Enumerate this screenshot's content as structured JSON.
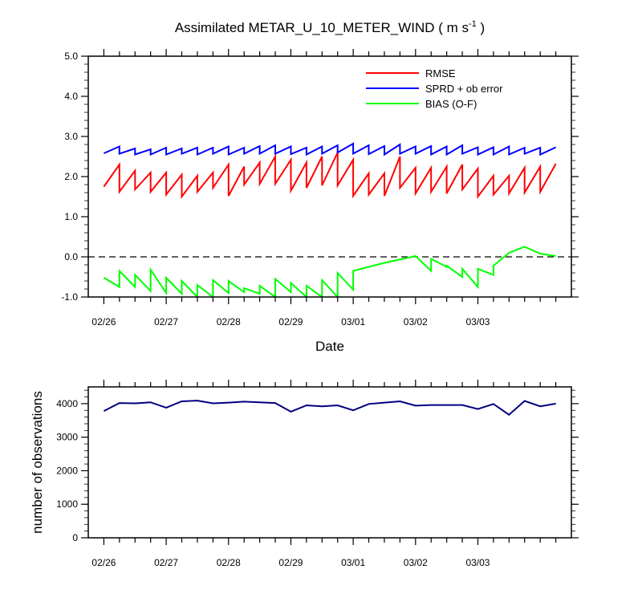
{
  "chart_data": [
    {
      "type": "line",
      "title_main": "Assimilated METAR_U_10_METER_WIND ( m s",
      "title_sup": "-1",
      "title_end": " )",
      "xlabel": "Date",
      "ylabel": "",
      "ylim": [
        -1.0,
        5.0
      ],
      "yticks": [
        "-1.0",
        "0.0",
        "1.0",
        "2.0",
        "3.0",
        "4.0",
        "5.0"
      ],
      "xticks": [
        "02/26",
        "02/27",
        "02/28",
        "02/29",
        "03/01",
        "03/02",
        "03/03"
      ],
      "reference_line": 0.0,
      "legend_position": "top-right",
      "series": [
        {
          "name": "RMSE",
          "color": "#ff0000",
          "x": [
            0,
            0.25,
            0.25,
            0.5,
            0.5,
            0.75,
            0.75,
            1,
            1,
            1.25,
            1.25,
            1.5,
            1.5,
            1.75,
            1.75,
            2,
            2,
            2.25,
            2.25,
            2.5,
            2.5,
            2.75,
            2.75,
            3,
            3,
            3.25,
            3.25,
            3.5,
            3.5,
            3.75,
            3.75,
            4,
            4,
            4.25,
            4.25,
            4.5,
            4.5,
            4.75,
            4.75,
            5,
            5,
            5.25,
            5.25,
            5.5,
            5.5,
            5.75,
            5.75,
            6,
            6,
            6.25,
            6.25,
            6.5,
            6.5,
            6.75,
            6.75,
            7,
            7,
            7.25
          ],
          "values": [
            1.75,
            2.3,
            1.62,
            2.15,
            1.68,
            2.1,
            1.62,
            2.1,
            1.55,
            2.05,
            1.5,
            2.02,
            1.62,
            2.1,
            1.72,
            2.3,
            1.52,
            2.25,
            1.8,
            2.35,
            1.82,
            2.5,
            1.82,
            2.42,
            1.65,
            2.35,
            1.72,
            2.5,
            1.78,
            2.6,
            1.78,
            2.42,
            1.52,
            2.08,
            1.55,
            2.08,
            1.52,
            2.5,
            1.72,
            2.22,
            1.58,
            2.22,
            1.62,
            2.25,
            1.58,
            2.3,
            1.68,
            2.2,
            1.5,
            2.02,
            1.55,
            2.02,
            1.58,
            2.22,
            1.6,
            2.25,
            1.62,
            2.32
          ]
        },
        {
          "name": "SPRD + ob error",
          "color": "#0000ff",
          "x": [
            0,
            0.25,
            0.25,
            0.5,
            0.5,
            0.75,
            0.75,
            1,
            1,
            1.25,
            1.25,
            1.5,
            1.5,
            1.75,
            1.75,
            2,
            2,
            2.25,
            2.25,
            2.5,
            2.5,
            2.75,
            2.75,
            3,
            3,
            3.25,
            3.25,
            3.5,
            3.5,
            3.75,
            3.75,
            4,
            4,
            4.25,
            4.25,
            4.5,
            4.5,
            4.75,
            4.75,
            5,
            5,
            5.25,
            5.25,
            5.5,
            5.5,
            5.75,
            5.75,
            6,
            6,
            6.25,
            6.25,
            6.5,
            6.5,
            6.75,
            6.75,
            7,
            7,
            7.25
          ],
          "values": [
            2.58,
            2.75,
            2.57,
            2.7,
            2.55,
            2.68,
            2.55,
            2.72,
            2.55,
            2.7,
            2.57,
            2.72,
            2.55,
            2.72,
            2.57,
            2.75,
            2.55,
            2.72,
            2.57,
            2.76,
            2.57,
            2.78,
            2.57,
            2.75,
            2.56,
            2.72,
            2.55,
            2.75,
            2.57,
            2.78,
            2.6,
            2.82,
            2.57,
            2.78,
            2.56,
            2.76,
            2.55,
            2.8,
            2.57,
            2.75,
            2.57,
            2.76,
            2.55,
            2.75,
            2.55,
            2.78,
            2.57,
            2.73,
            2.55,
            2.73,
            2.55,
            2.75,
            2.55,
            2.72,
            2.57,
            2.72,
            2.55,
            2.73
          ]
        },
        {
          "name": "BIAS (O-F)",
          "color": "#00ff00",
          "x": [
            0,
            0.25,
            0.25,
            0.5,
            0.5,
            0.75,
            0.75,
            1,
            1,
            1.25,
            1.25,
            1.5,
            1.5,
            1.75,
            1.75,
            2,
            2,
            2.25,
            2.25,
            2.5,
            2.5,
            2.75,
            2.75,
            3,
            3,
            3.25,
            3.25,
            3.5,
            3.5,
            3.75,
            3.75,
            4,
            4,
            4.5,
            5,
            5.25,
            5.25,
            5.5,
            5.5,
            5.75,
            5.75,
            6,
            6,
            6.25,
            6.25,
            6.5,
            6.75,
            7,
            7.25
          ],
          "values": [
            -0.52,
            -0.75,
            -0.35,
            -0.75,
            -0.45,
            -0.85,
            -0.32,
            -0.9,
            -0.52,
            -0.92,
            -0.6,
            -1.0,
            -0.7,
            -1.0,
            -0.58,
            -0.9,
            -0.6,
            -0.88,
            -0.78,
            -0.92,
            -0.72,
            -1.0,
            -0.55,
            -0.88,
            -0.65,
            -1.0,
            -0.72,
            -1.0,
            -0.58,
            -1.0,
            -0.4,
            -0.82,
            -0.35,
            -0.15,
            0.02,
            -0.35,
            -0.05,
            -0.25,
            -0.22,
            -0.5,
            -0.3,
            -0.75,
            -0.3,
            -0.45,
            -0.22,
            0.1,
            0.25,
            0.08,
            0.02
          ]
        }
      ]
    },
    {
      "type": "line",
      "title": "",
      "xlabel": "",
      "ylabel": "number of observations",
      "ylim": [
        0,
        4500
      ],
      "yticks": [
        "0",
        "1000",
        "2000",
        "3000",
        "4000"
      ],
      "xticks": [
        "02/26",
        "02/27",
        "02/28",
        "02/29",
        "03/01",
        "03/02",
        "03/03"
      ],
      "series": [
        {
          "color": "#000080",
          "x": [
            0,
            0.25,
            0.5,
            0.75,
            1,
            1.25,
            1.5,
            1.75,
            2,
            2.25,
            2.5,
            2.75,
            3,
            3.25,
            3.5,
            3.75,
            4,
            4.25,
            4.5,
            4.75,
            5,
            5.25,
            5.5,
            5.75,
            6,
            6.25,
            6.5,
            6.75,
            7,
            7.25
          ],
          "values": [
            3780,
            4020,
            4010,
            4040,
            3880,
            4070,
            4090,
            4010,
            4030,
            4060,
            4040,
            4020,
            3760,
            3950,
            3920,
            3950,
            3800,
            3990,
            4030,
            4070,
            3940,
            3960,
            3960,
            3960,
            3840,
            3990,
            3670,
            4080,
            3920,
            4000
          ]
        }
      ]
    }
  ]
}
